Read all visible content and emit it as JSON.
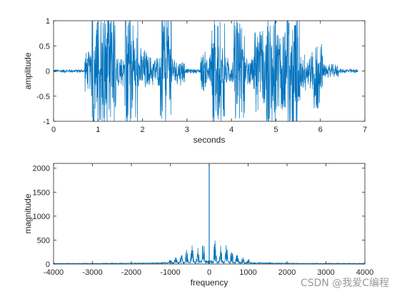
{
  "watermark": "CSDN @我爱C编程",
  "colors": {
    "signal": "#0072BD",
    "axis": "#262626",
    "background": "#ffffff"
  },
  "chart_data": [
    {
      "type": "line",
      "xlabel": "seconds",
      "ylabel": "amplitude",
      "xlim": [
        0,
        7
      ],
      "ylim": [
        -1,
        1
      ],
      "xticks": [
        0,
        1,
        2,
        3,
        4,
        5,
        6,
        7
      ],
      "yticks": [
        -1,
        -0.5,
        0,
        0.5,
        1
      ],
      "xtick_labels": [
        "0",
        "1",
        "2",
        "3",
        "4",
        "5",
        "6",
        "7"
      ],
      "ytick_labels": [
        "-1",
        "-0.5",
        "0",
        "0.5",
        "1"
      ],
      "grid": false,
      "signal_duration": 6.85,
      "envelope_segments": [
        {
          "start": 0.0,
          "end": 0.7,
          "amp": 0.04
        },
        {
          "start": 0.7,
          "end": 0.85,
          "amp": 0.45
        },
        {
          "start": 0.85,
          "end": 1.1,
          "amp": 1.0
        },
        {
          "start": 1.1,
          "end": 1.4,
          "amp": 1.0
        },
        {
          "start": 1.4,
          "end": 1.6,
          "amp": 0.4
        },
        {
          "start": 1.6,
          "end": 1.9,
          "amp": 1.0
        },
        {
          "start": 1.9,
          "end": 2.1,
          "amp": 0.5
        },
        {
          "start": 2.1,
          "end": 2.4,
          "amp": 0.35
        },
        {
          "start": 2.4,
          "end": 2.65,
          "amp": 0.95
        },
        {
          "start": 2.65,
          "end": 2.95,
          "amp": 0.3
        },
        {
          "start": 2.95,
          "end": 3.3,
          "amp": 0.05
        },
        {
          "start": 3.3,
          "end": 3.55,
          "amp": 0.45
        },
        {
          "start": 3.55,
          "end": 3.85,
          "amp": 0.95
        },
        {
          "start": 3.85,
          "end": 4.05,
          "amp": 0.3
        },
        {
          "start": 4.05,
          "end": 4.3,
          "amp": 0.9
        },
        {
          "start": 4.3,
          "end": 4.5,
          "amp": 0.3
        },
        {
          "start": 4.5,
          "end": 4.75,
          "amp": 0.75
        },
        {
          "start": 4.75,
          "end": 5.0,
          "amp": 1.0
        },
        {
          "start": 5.0,
          "end": 5.25,
          "amp": 0.7
        },
        {
          "start": 5.25,
          "end": 5.55,
          "amp": 1.0
        },
        {
          "start": 5.55,
          "end": 5.85,
          "amp": 0.45
        },
        {
          "start": 5.85,
          "end": 6.05,
          "amp": 0.7
        },
        {
          "start": 6.05,
          "end": 6.4,
          "amp": 0.15
        },
        {
          "start": 6.4,
          "end": 6.85,
          "amp": 0.05
        }
      ]
    },
    {
      "type": "line",
      "xlabel": "frequency",
      "ylabel": "magnitude",
      "xlim": [
        -4000,
        4000
      ],
      "ylim": [
        0,
        2100
      ],
      "xticks": [
        -4000,
        -3000,
        -2000,
        -1000,
        0,
        1000,
        2000,
        3000,
        4000
      ],
      "yticks": [
        0,
        500,
        1000,
        1500,
        2000
      ],
      "xtick_labels": [
        "-4000",
        "-3000",
        "-2000",
        "-1000",
        "0",
        "1000",
        "2000",
        "3000",
        "4000"
      ],
      "ytick_labels": [
        "0",
        "500",
        "1000",
        "1500",
        "2000"
      ],
      "grid": false,
      "peak": {
        "x": 0,
        "y": 2080
      },
      "clusters": [
        {
          "center": 150,
          "width": 90,
          "height": 480
        },
        {
          "center": 300,
          "width": 90,
          "height": 380
        },
        {
          "center": 440,
          "width": 90,
          "height": 430
        },
        {
          "center": 580,
          "width": 90,
          "height": 310
        },
        {
          "center": 720,
          "width": 90,
          "height": 250
        },
        {
          "center": 860,
          "width": 90,
          "height": 140
        },
        {
          "center": 1000,
          "width": 100,
          "height": 80
        }
      ],
      "background_level": 12
    }
  ]
}
